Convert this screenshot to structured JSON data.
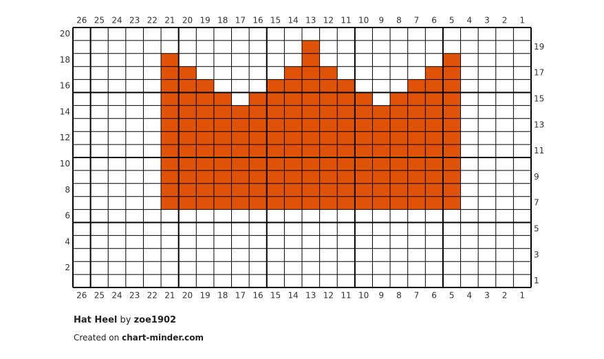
{
  "column_labels": [
    26,
    25,
    24,
    23,
    22,
    21,
    20,
    19,
    18,
    17,
    16,
    15,
    14,
    13,
    12,
    11,
    10,
    9,
    8,
    7,
    6,
    5,
    4,
    3,
    2,
    1
  ],
  "row_labels": [
    1,
    2,
    3,
    4,
    5,
    6,
    7,
    8,
    9,
    10,
    11,
    12,
    13,
    14,
    15,
    16,
    17,
    18,
    19,
    20
  ],
  "fill": {
    "color": "#e05206",
    "bottom_row": 7,
    "top_rows": [
      null,
      null,
      null,
      null,
      null,
      18,
      17,
      16,
      15,
      14,
      15,
      16,
      17,
      19,
      17,
      16,
      15,
      14,
      15,
      16,
      17,
      18,
      null,
      null,
      null,
      null
    ]
  },
  "footer": {
    "title": "Hat Heel",
    "by": "by",
    "author": "zoe1902",
    "created_on": "Created on",
    "site": "chart-minder.com"
  }
}
